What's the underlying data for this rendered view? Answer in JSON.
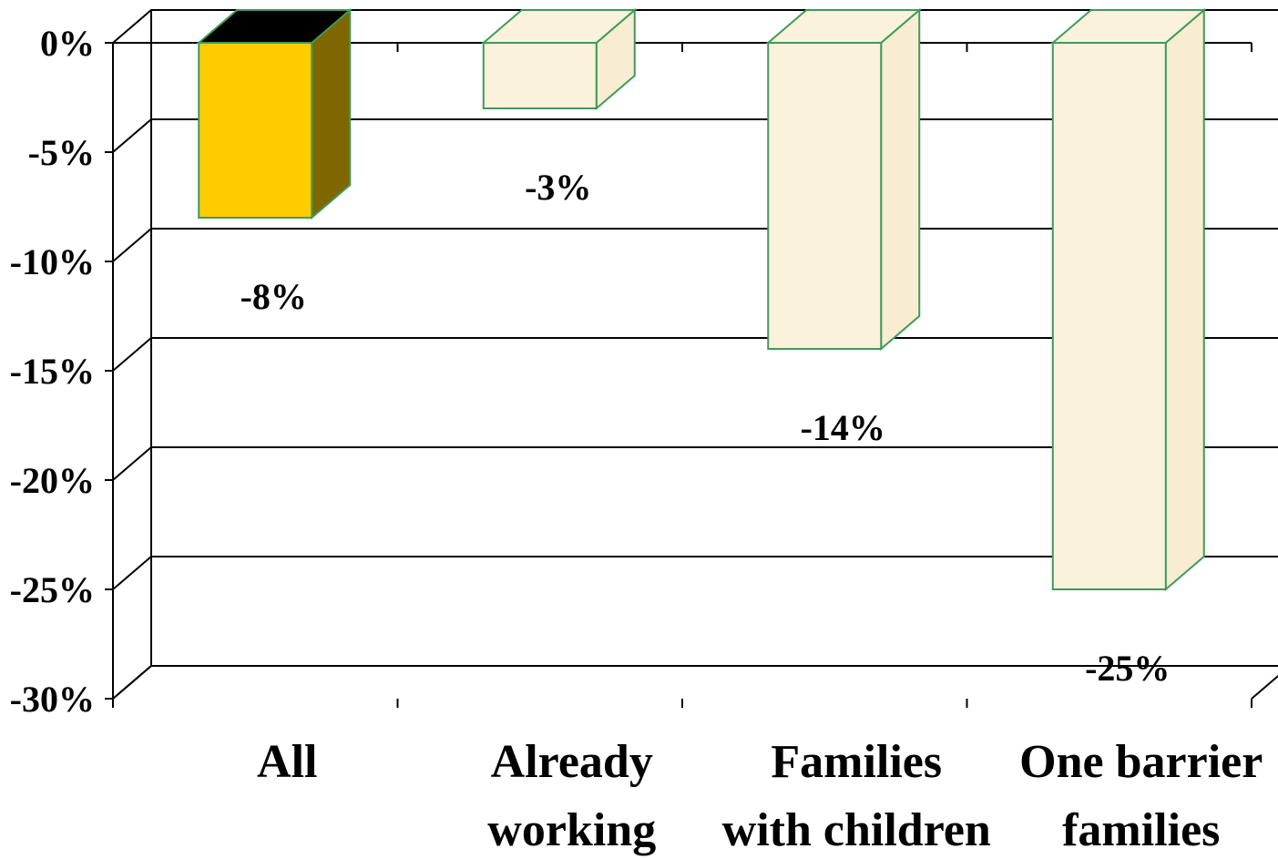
{
  "chart_data": {
    "type": "bar",
    "categories": [
      "All",
      "Already working",
      "Families with children",
      "One barrier families"
    ],
    "category_lines": [
      [
        "All"
      ],
      [
        "Already",
        "working"
      ],
      [
        "Families",
        "with children"
      ],
      [
        "One barrier",
        "families"
      ]
    ],
    "values": [
      -8,
      -3,
      -14,
      -25
    ],
    "value_labels": [
      "-8%",
      "-3%",
      "-14%",
      "-25%"
    ],
    "ylim": [
      -30,
      0
    ],
    "yticks": [
      0,
      -5,
      -10,
      -15,
      -20,
      -25,
      -30
    ],
    "ytick_labels": [
      "0%",
      "-5%",
      "-10%",
      "-15%",
      "-20%",
      "-25%",
      "-30%"
    ],
    "grid": true,
    "three_d": true,
    "highlighted_category": "All",
    "colors": {
      "highlight_front": "#ffcc00",
      "highlight_side": "#7f6600",
      "highlight_top": "#000000",
      "bar_fill": "#fbf2dc",
      "bar_side": "#f8edd2",
      "bar_edge": "#3f9a5b",
      "axis": "#000000",
      "grid": "#000000"
    }
  }
}
